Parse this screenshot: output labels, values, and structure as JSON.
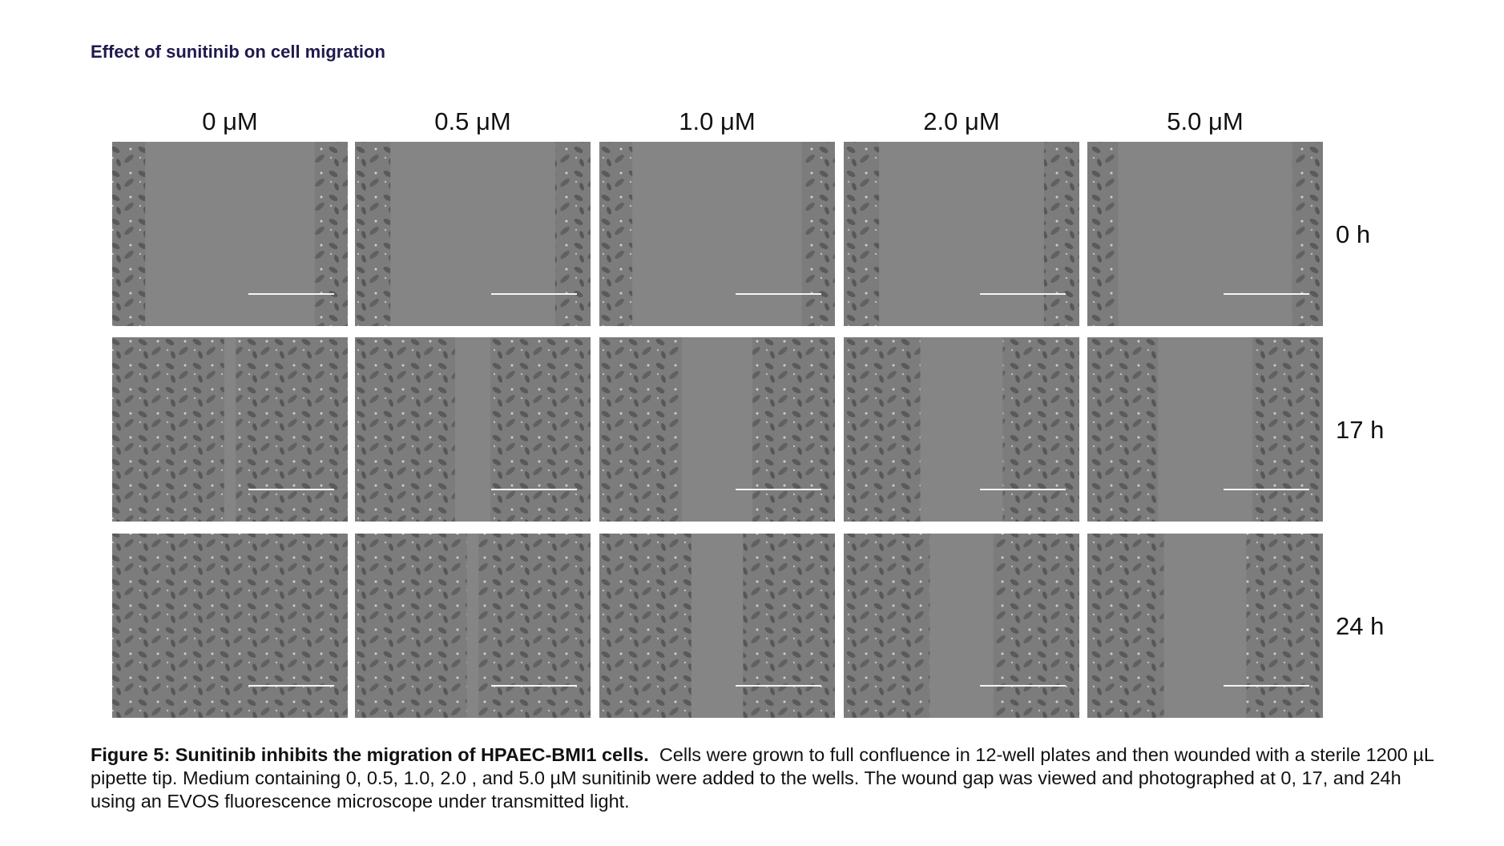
{
  "header": {
    "title": "Effect of sunitinib on cell migration"
  },
  "figure": {
    "columns": [
      "0 μM",
      "0.5 μM",
      "1.0 μM",
      "2.0 μM",
      "5.0 μM"
    ],
    "rows": [
      "0 h",
      "17 h",
      "24 h"
    ]
  },
  "caption": {
    "heading": "Figure 5: Sunitinib inhibits the migration of HPAEC-BMI1 cells.",
    "text": "Cells were grown to full confluence in 12-well plates and then wounded with a sterile 1200 µL pipette tip. Medium containing 0, 0.5, 1.0, 2.0 , and 5.0 µM sunitinib were added to the wells. The wound gap was viewed and photographed at 0, 17, and 24h using an EVOS fluorescence microscope under transmitted light."
  }
}
